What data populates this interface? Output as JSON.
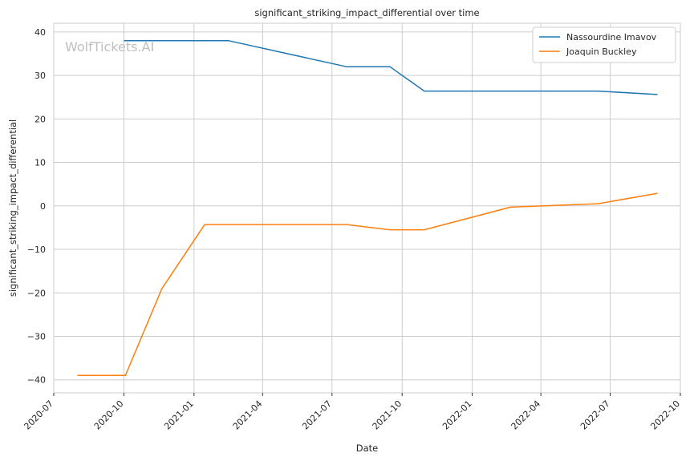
{
  "chart_data": {
    "type": "line",
    "title": "significant_striking_impact_differential over time",
    "xlabel": "Date",
    "ylabel": "significant_striking_impact_differential",
    "watermark": "WolfTickets.AI",
    "xlim": [
      "2020-07-01",
      "2022-10-01"
    ],
    "ylim": [
      -43,
      42
    ],
    "x_ticks": [
      "2020-07-01",
      "2020-10-01",
      "2021-01-01",
      "2021-04-01",
      "2021-07-01",
      "2021-10-01",
      "2022-01-01",
      "2022-04-01",
      "2022-07-01",
      "2022-10-01"
    ],
    "x_tick_labels": [
      "2020-07",
      "2020-10",
      "2021-01",
      "2021-04",
      "2021-07",
      "2021-10",
      "2022-01",
      "2022-04",
      "2022-07",
      "2022-10"
    ],
    "y_ticks": [
      40,
      30,
      20,
      10,
      0,
      -10,
      -20,
      -30,
      -40
    ],
    "y_tick_labels": [
      "40",
      "30",
      "20",
      "10",
      "0",
      "−10",
      "−20",
      "−30",
      "−40"
    ],
    "grid": true,
    "legend_position": "top-right",
    "series": [
      {
        "name": "Nassourdine Imavov",
        "color": "#1f77b4",
        "points": [
          {
            "x": "2020-10-01",
            "y": 38
          },
          {
            "x": "2021-02-15",
            "y": 38
          },
          {
            "x": "2021-07-20",
            "y": 32
          },
          {
            "x": "2021-09-15",
            "y": 32
          },
          {
            "x": "2021-10-30",
            "y": 26.4
          },
          {
            "x": "2022-06-15",
            "y": 26.4
          },
          {
            "x": "2022-09-01",
            "y": 25.6
          }
        ]
      },
      {
        "name": "Joaquin Buckley",
        "color": "#ff7f0e",
        "points": [
          {
            "x": "2020-08-01",
            "y": -39
          },
          {
            "x": "2020-10-03",
            "y": -39
          },
          {
            "x": "2020-11-20",
            "y": -19
          },
          {
            "x": "2021-01-15",
            "y": -4.3
          },
          {
            "x": "2021-07-20",
            "y": -4.3
          },
          {
            "x": "2021-09-15",
            "y": -5.5
          },
          {
            "x": "2021-10-30",
            "y": -5.5
          },
          {
            "x": "2022-02-20",
            "y": -0.3
          },
          {
            "x": "2022-06-15",
            "y": 0.5
          },
          {
            "x": "2022-09-01",
            "y": 2.9
          }
        ]
      }
    ]
  }
}
